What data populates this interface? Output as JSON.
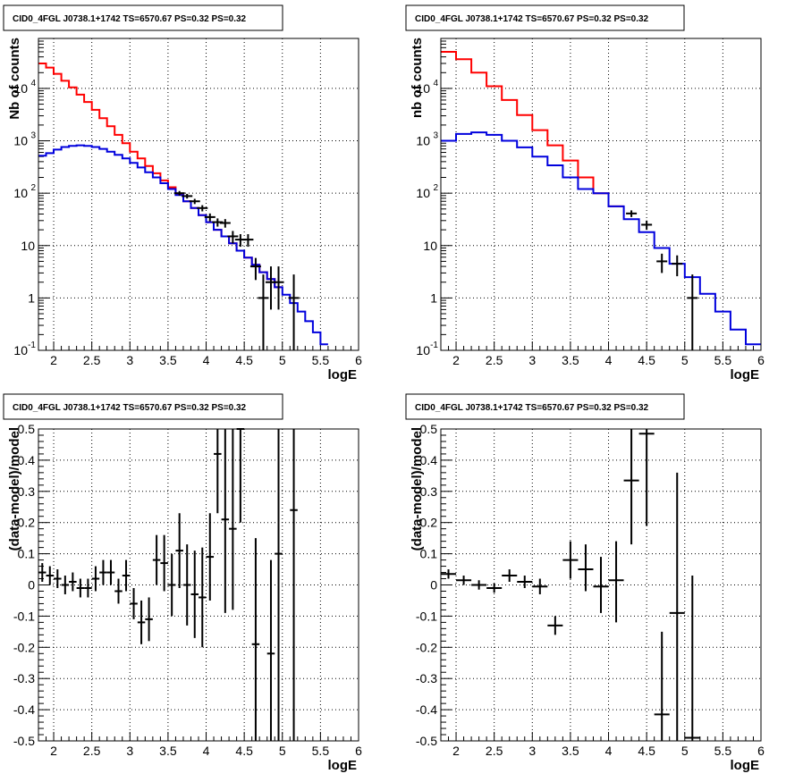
{
  "chart_data": [
    {
      "type": "line",
      "title": "CID0_4FGL J0738.1+1742 TS=6570.67 PS=0.32 PS=0.32",
      "xlabel": "logE",
      "ylabel": "Nb of counts",
      "xlim": [
        1.8,
        6.0
      ],
      "ylim": [
        0.1,
        90000
      ],
      "yscale": "log",
      "grid": true,
      "x_ticks": [
        2,
        2.5,
        3,
        3.5,
        4,
        4.5,
        5,
        5.5,
        6
      ],
      "x_tick_labels": [
        "2",
        "2.5",
        "3",
        "3.5",
        "4",
        "4.5",
        "5",
        "5.5",
        "6"
      ],
      "y_ticks": [
        0.1,
        1,
        10,
        100,
        1000,
        10000
      ],
      "y_tick_labels": [
        [
          "10",
          "-1"
        ],
        [
          "1",
          ""
        ],
        [
          "10",
          ""
        ],
        [
          "10",
          "2"
        ],
        [
          "10",
          "3"
        ],
        [
          "10",
          "4"
        ]
      ],
      "bin_edges": [
        1.8,
        1.9,
        2.0,
        2.1,
        2.2,
        2.3,
        2.4,
        2.5,
        2.6,
        2.7,
        2.8,
        2.9,
        3.0,
        3.1,
        3.2,
        3.3,
        3.4,
        3.5,
        3.6,
        3.7,
        3.8,
        3.9,
        4.0,
        4.1,
        4.2,
        4.3,
        4.4,
        4.5,
        4.6,
        4.7,
        4.8,
        4.9,
        5.0,
        5.1,
        5.2,
        5.3,
        5.4,
        5.5,
        5.6,
        5.7,
        5.8,
        5.9,
        6.0
      ],
      "series": [
        {
          "kind": "step",
          "color": "#ff0000",
          "values": [
            30000,
            25000,
            19000,
            14000,
            10500,
            7600,
            5500,
            3900,
            2700,
            1900,
            1300,
            900,
            620,
            460,
            330,
            240,
            175,
            130,
            95,
            70,
            52,
            38,
            28,
            20,
            15,
            11,
            8,
            5.9,
            4.3,
            3.1,
            2.3,
            1.6
          ]
        },
        {
          "kind": "step",
          "color": "#0000dd",
          "values": [
            520,
            580,
            680,
            760,
            800,
            820,
            800,
            760,
            700,
            620,
            540,
            460,
            380,
            310,
            250,
            200,
            155,
            120,
            92,
            70,
            52,
            38,
            28,
            20,
            15,
            11,
            8,
            5.9,
            4.3,
            3.1,
            2.3,
            1.6,
            1.15,
            0.8,
            0.55,
            0.36,
            0.22,
            0.13
          ]
        },
        {
          "kind": "points",
          "color": "#000000",
          "x": [
            3.65,
            3.75,
            3.85,
            3.95,
            4.05,
            4.15,
            4.25,
            4.35,
            4.45,
            4.55,
            4.65,
            4.75,
            4.85,
            4.95,
            5.15
          ],
          "y": [
            100,
            88,
            70,
            52,
            35,
            28,
            27,
            15,
            13,
            13,
            4,
            1,
            2,
            2,
            1
          ],
          "y_lo": [
            90,
            79,
            62,
            45,
            29,
            23,
            22,
            11,
            9.5,
            9.5,
            2.2,
            0.1,
            0.6,
            0.6,
            0.1
          ],
          "y_hi": [
            110,
            97,
            78,
            59,
            41,
            33,
            32,
            19,
            16.5,
            16.5,
            5.8,
            2.8,
            4,
            4,
            2.8
          ]
        }
      ]
    },
    {
      "type": "line",
      "title": "CID0_4FGL J0738.1+1742 TS=6570.67 PS=0.32 PS=0.32",
      "xlabel": "logE",
      "ylabel": "nb of counts",
      "xlim": [
        1.8,
        6.0
      ],
      "ylim": [
        0.1,
        90000
      ],
      "yscale": "log",
      "grid": true,
      "x_ticks": [
        2,
        2.5,
        3,
        3.5,
        4,
        4.5,
        5,
        5.5,
        6
      ],
      "x_tick_labels": [
        "2",
        "2.5",
        "3",
        "3.5",
        "4",
        "4.5",
        "5",
        "5.5",
        "6"
      ],
      "y_ticks": [
        0.1,
        1,
        10,
        100,
        1000,
        10000
      ],
      "y_tick_labels": [
        [
          "10",
          "-1"
        ],
        [
          "1",
          ""
        ],
        [
          "10",
          ""
        ],
        [
          "10",
          "2"
        ],
        [
          "10",
          "3"
        ],
        [
          "10",
          "4"
        ]
      ],
      "bin_edges": [
        1.8,
        2.0,
        2.2,
        2.4,
        2.6,
        2.8,
        3.0,
        3.2,
        3.4,
        3.6,
        3.8,
        4.0,
        4.2,
        4.4,
        4.6,
        4.8,
        5.0,
        5.2,
        5.4,
        5.6,
        5.8,
        6.0
      ],
      "series": [
        {
          "kind": "step",
          "color": "#ff0000",
          "values": [
            50000,
            36000,
            20000,
            11000,
            6000,
            3100,
            1600,
            820,
            420,
            200,
            100,
            56
          ]
        },
        {
          "kind": "step",
          "color": "#0000dd",
          "values": [
            1000,
            1350,
            1450,
            1300,
            1000,
            750,
            500,
            340,
            200,
            120,
            100,
            56,
            32,
            18,
            9,
            4.5,
            2.5,
            1.2,
            0.55,
            0.25,
            0.13
          ]
        },
        {
          "kind": "points",
          "color": "#000000",
          "x": [
            4.3,
            4.5,
            4.7,
            4.9,
            5.1
          ],
          "y": [
            41,
            25,
            5,
            4.5,
            1
          ],
          "y_lo": [
            35,
            20,
            3,
            2.6,
            0.1
          ],
          "y_hi": [
            47,
            30,
            7,
            6.5,
            2.8
          ]
        }
      ]
    },
    {
      "type": "scatter",
      "title": "CID0_4FGL J0738.1+1742 TS=6570.67 PS=0.32 PS=0.32",
      "xlabel": "logE",
      "ylabel": "(data-model)/model",
      "xlim": [
        1.8,
        6.0
      ],
      "ylim": [
        -0.5,
        0.5
      ],
      "grid": true,
      "x_ticks": [
        2,
        2.5,
        3,
        3.5,
        4,
        4.5,
        5,
        5.5,
        6
      ],
      "x_tick_labels": [
        "2",
        "2.5",
        "3",
        "3.5",
        "4",
        "4.5",
        "5",
        "5.5",
        "6"
      ],
      "y_ticks": [
        -0.5,
        -0.4,
        -0.3,
        -0.2,
        -0.1,
        0,
        0.1,
        0.2,
        0.3,
        0.4,
        0.5
      ],
      "y_tick_labels": [
        "-0.5",
        "-0.4",
        "-0.3",
        "-0.2",
        "-0.1",
        "0",
        "0.1",
        "0.2",
        "0.3",
        "0.4",
        "0.5"
      ],
      "x_halfwidth": 0.05,
      "points": {
        "x": [
          1.85,
          1.95,
          2.05,
          2.15,
          2.25,
          2.35,
          2.45,
          2.55,
          2.65,
          2.75,
          2.85,
          2.95,
          3.05,
          3.15,
          3.25,
          3.35,
          3.45,
          3.55,
          3.65,
          3.75,
          3.85,
          3.95,
          4.05,
          4.15,
          4.25,
          4.35,
          4.45,
          4.65,
          4.85,
          4.95,
          5.15
        ],
        "y": [
          0.04,
          0.03,
          0.02,
          0.0,
          0.01,
          -0.01,
          -0.01,
          0.02,
          0.04,
          0.04,
          -0.02,
          0.03,
          -0.06,
          -0.12,
          -0.11,
          0.08,
          0.07,
          0.0,
          0.11,
          0.0,
          -0.03,
          -0.04,
          0.09,
          0.42,
          0.21,
          0.18,
          0.5,
          -0.19,
          -0.22,
          0.1,
          0.24
        ],
        "y_lo": [
          0.01,
          0.0,
          -0.01,
          -0.03,
          -0.02,
          -0.04,
          -0.04,
          -0.02,
          0.0,
          0.0,
          -0.06,
          -0.02,
          -0.11,
          -0.19,
          -0.18,
          0.0,
          -0.02,
          -0.1,
          -0.01,
          -0.13,
          -0.17,
          -0.2,
          -0.05,
          0.23,
          -0.09,
          -0.08,
          0.2,
          -0.5,
          -0.5,
          -0.5,
          -0.5
        ],
        "y_hi": [
          0.07,
          0.06,
          0.05,
          0.03,
          0.04,
          0.02,
          0.02,
          0.06,
          0.08,
          0.08,
          0.02,
          0.08,
          -0.01,
          -0.05,
          -0.04,
          0.16,
          0.16,
          0.1,
          0.23,
          0.13,
          0.11,
          0.12,
          0.23,
          0.5,
          0.5,
          0.5,
          0.5,
          0.15,
          0.08,
          0.5,
          0.5
        ]
      }
    },
    {
      "type": "scatter",
      "title": "CID0_4FGL J0738.1+1742 TS=6570.67 PS=0.32 PS=0.32",
      "xlabel": "logE",
      "ylabel": "(data-model)/model",
      "xlim": [
        1.8,
        6.0
      ],
      "ylim": [
        -0.5,
        0.5
      ],
      "grid": true,
      "x_ticks": [
        2,
        2.5,
        3,
        3.5,
        4,
        4.5,
        5,
        5.5,
        6
      ],
      "x_tick_labels": [
        "2",
        "2.5",
        "3",
        "3.5",
        "4",
        "4.5",
        "5",
        "5.5",
        "6"
      ],
      "y_ticks": [
        -0.5,
        -0.4,
        -0.3,
        -0.2,
        -0.1,
        0,
        0.1,
        0.2,
        0.3,
        0.4,
        0.5
      ],
      "y_tick_labels": [
        "-0.5",
        "-0.4",
        "-0.3",
        "-0.2",
        "-0.1",
        "0",
        "0.1",
        "0.2",
        "0.3",
        "0.4",
        "0.5"
      ],
      "x_halfwidth": 0.1,
      "points": {
        "x": [
          1.9,
          2.1,
          2.3,
          2.5,
          2.7,
          2.9,
          3.1,
          3.3,
          3.5,
          3.7,
          3.9,
          4.1,
          4.3,
          4.5,
          4.7,
          4.9,
          5.1
        ],
        "y": [
          0.035,
          0.015,
          0.0,
          -0.01,
          0.03,
          0.01,
          -0.005,
          -0.13,
          0.08,
          0.05,
          -0.005,
          0.015,
          0.335,
          0.485,
          -0.415,
          -0.09,
          -0.49
        ],
        "y_lo": [
          0.02,
          0.0,
          -0.015,
          -0.025,
          0.01,
          -0.01,
          -0.03,
          -0.16,
          0.02,
          -0.02,
          -0.09,
          -0.12,
          0.13,
          0.19,
          -0.5,
          -0.5,
          -0.5
        ],
        "y_hi": [
          0.05,
          0.03,
          0.015,
          0.005,
          0.05,
          0.03,
          0.02,
          -0.1,
          0.14,
          0.13,
          0.09,
          0.14,
          0.5,
          0.5,
          -0.15,
          0.36,
          0.03
        ]
      }
    }
  ]
}
